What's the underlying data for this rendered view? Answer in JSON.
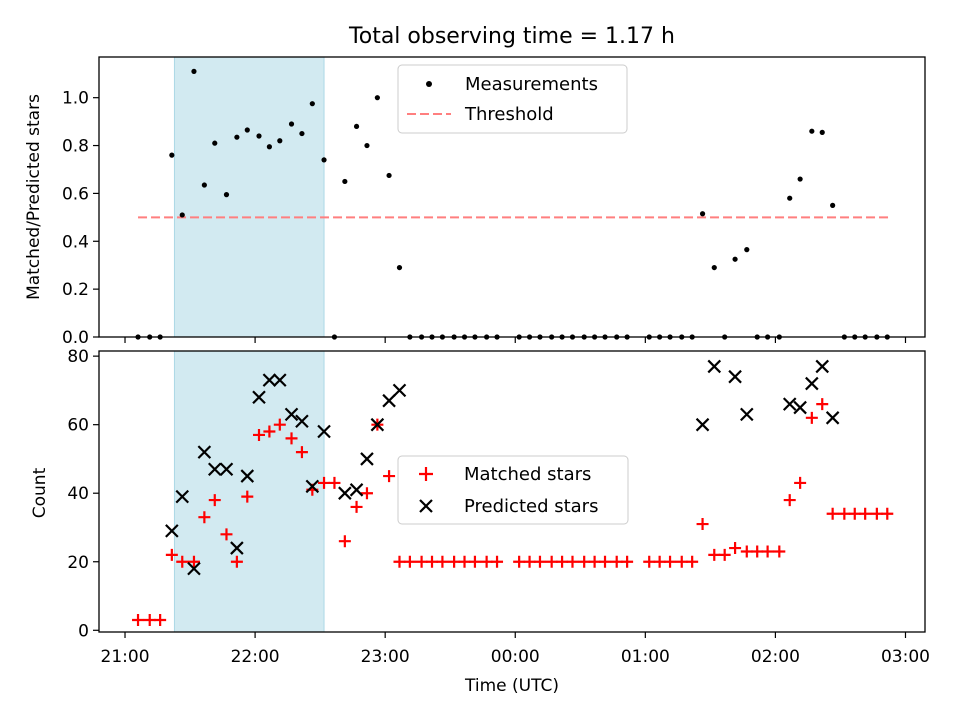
{
  "chart_data": [
    {
      "type": "scatter",
      "title": "Total observing time = 1.17 h",
      "ylabel": "Matched/Predicted stars",
      "xlabel": "",
      "ylim": [
        0,
        1.17
      ],
      "yticks": [
        "0.0",
        "0.2",
        "0.4",
        "0.6",
        "0.8",
        "1.0"
      ],
      "threshold": {
        "name": "Threshold",
        "value": 0.5,
        "x_start": 21.1,
        "x_end": 26.87,
        "color": "#ff7f7f"
      },
      "highlight_span": {
        "start": 21.38,
        "end": 22.53,
        "color": "#add8e6"
      },
      "legend": {
        "placement": "top-center",
        "entries": [
          "Measurements",
          "Threshold"
        ]
      },
      "series": [
        {
          "name": "Measurements",
          "color": "#000000",
          "x": [
            21.1,
            21.19,
            21.27,
            21.36,
            21.44,
            21.53,
            21.61,
            21.69,
            21.78,
            21.86,
            21.94,
            22.03,
            22.11,
            22.19,
            22.28,
            22.36,
            22.44,
            22.53,
            22.61,
            22.69,
            22.78,
            22.86,
            22.94,
            23.03,
            23.11,
            23.19,
            23.28,
            23.36,
            23.44,
            23.53,
            23.61,
            23.69,
            23.78,
            23.86,
            24.03,
            24.11,
            24.19,
            24.28,
            24.36,
            24.44,
            24.53,
            24.61,
            24.69,
            24.78,
            24.86,
            25.03,
            25.11,
            25.19,
            25.28,
            25.36,
            25.44,
            25.53,
            25.61,
            25.69,
            25.78,
            25.86,
            25.94,
            26.03,
            26.11,
            26.19,
            26.28,
            26.36,
            26.44,
            26.53,
            26.61,
            26.69,
            26.78,
            26.86
          ],
          "y": [
            0,
            0,
            0,
            0.76,
            0.51,
            1.11,
            0.635,
            0.81,
            0.595,
            0.835,
            0.865,
            0.84,
            0.795,
            0.82,
            0.89,
            0.85,
            0.975,
            0.74,
            0,
            0.65,
            0.88,
            0.8,
            1.0,
            0.675,
            0.29,
            0,
            0,
            0,
            0,
            0,
            0,
            0,
            0,
            0,
            0,
            0,
            0,
            0,
            0,
            0,
            0,
            0,
            0,
            0,
            0,
            0,
            0,
            0,
            0,
            0,
            0.515,
            0.29,
            0,
            0.325,
            0.365,
            0,
            0,
            0,
            0.58,
            0.66,
            0.86,
            0.855,
            0.55,
            0,
            0,
            0,
            0,
            0
          ]
        }
      ]
    },
    {
      "type": "scatter",
      "title": "",
      "ylabel": "Count",
      "xlabel": "Time (UTC)",
      "ylim": [
        0,
        80
      ],
      "yticks": [
        "0",
        "20",
        "40",
        "60",
        "80"
      ],
      "xlim": [
        20.8,
        27.15
      ],
      "xticks": [
        {
          "x": 21,
          "label": "21:00"
        },
        {
          "x": 22,
          "label": "22:00"
        },
        {
          "x": 23,
          "label": "23:00"
        },
        {
          "x": 24,
          "label": "00:00"
        },
        {
          "x": 25,
          "label": "01:00"
        },
        {
          "x": 26,
          "label": "02:00"
        },
        {
          "x": 27,
          "label": "03:00"
        }
      ],
      "highlight_span": {
        "start": 21.38,
        "end": 22.53,
        "color": "#add8e6"
      },
      "legend": {
        "placement": "center",
        "entries": [
          "Matched stars",
          "Predicted stars"
        ]
      },
      "series": [
        {
          "name": "Matched stars",
          "color": "#ff0000",
          "marker": "plus",
          "x": [
            21.1,
            21.19,
            21.27,
            21.36,
            21.44,
            21.53,
            21.61,
            21.69,
            21.78,
            21.86,
            21.94,
            22.03,
            22.11,
            22.19,
            22.28,
            22.36,
            22.44,
            22.53,
            22.61,
            22.69,
            22.78,
            22.86,
            22.94,
            23.03,
            23.11,
            23.19,
            23.28,
            23.36,
            23.44,
            23.53,
            23.61,
            23.69,
            23.78,
            23.86,
            24.03,
            24.11,
            24.19,
            24.28,
            24.36,
            24.44,
            24.53,
            24.61,
            24.69,
            24.78,
            24.86,
            25.03,
            25.11,
            25.19,
            25.28,
            25.36,
            25.44,
            25.53,
            25.61,
            25.69,
            25.78,
            25.86,
            25.94,
            26.03,
            26.11,
            26.19,
            26.28,
            26.36,
            26.44,
            26.53,
            26.61,
            26.69,
            26.78,
            26.86
          ],
          "y": [
            3,
            3,
            3,
            22,
            20,
            20,
            33,
            38,
            28,
            20,
            39,
            57,
            58,
            60,
            56,
            52,
            41,
            43,
            43,
            26,
            36,
            40,
            60,
            45,
            20,
            20,
            20,
            20,
            20,
            20,
            20,
            20,
            20,
            20,
            20,
            20,
            20,
            20,
            20,
            20,
            20,
            20,
            20,
            20,
            20,
            20,
            20,
            20,
            20,
            20,
            31,
            22,
            22,
            24,
            23,
            23,
            23,
            23,
            38,
            43,
            62,
            66,
            34,
            34,
            34,
            34,
            34,
            34
          ]
        },
        {
          "name": "Predicted stars",
          "color": "#000000",
          "marker": "x",
          "x": [
            21.36,
            21.44,
            21.53,
            21.61,
            21.69,
            21.78,
            21.86,
            21.94,
            22.03,
            22.11,
            22.19,
            22.28,
            22.36,
            22.44,
            22.53,
            22.69,
            22.78,
            22.86,
            22.94,
            23.03,
            23.11,
            25.44,
            25.53,
            25.69,
            25.78,
            26.11,
            26.19,
            26.28,
            26.36,
            26.44
          ],
          "y": [
            29,
            39,
            18,
            52,
            47,
            47,
            24,
            45,
            68,
            73,
            73,
            63,
            61,
            42,
            58,
            40,
            41,
            50,
            60,
            67,
            70,
            60,
            77,
            74,
            63,
            66,
            65,
            72,
            77,
            62
          ]
        }
      ]
    }
  ]
}
